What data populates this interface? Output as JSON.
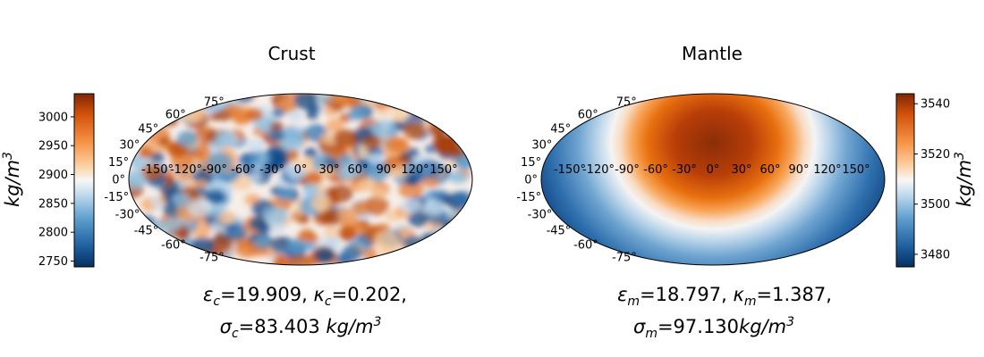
{
  "chart_data": [
    {
      "type": "heatmap",
      "projection": "mollweide",
      "title": "Crust",
      "colormap": "diverging orange-white-blue (high = orange)",
      "colorbar": {
        "label": "kg/m3",
        "label_display": "kg/m",
        "label_sup": "3",
        "ticks": [
          "3000",
          "2950",
          "2900",
          "2850",
          "2800",
          "2750"
        ],
        "tick_values": [
          3000,
          2950,
          2900,
          2850,
          2800,
          2750
        ],
        "range": [
          2740,
          3040
        ],
        "placement": "left"
      },
      "lon_tick_labels": [
        "-150°",
        "-120°",
        "-90°",
        "-60°",
        "-30°",
        "0°",
        "30°",
        "60°",
        "90°",
        "120°",
        "150°"
      ],
      "lon_tick_values": [
        -150,
        -120,
        -90,
        -60,
        -30,
        0,
        30,
        60,
        90,
        120,
        150
      ],
      "lat_tick_labels": [
        "75°",
        "60°",
        "45°",
        "30°",
        "15°",
        "0°",
        "-15°",
        "-30°",
        "-45°",
        "-60°",
        "-75°"
      ],
      "lat_tick_values": [
        75,
        60,
        45,
        30,
        15,
        0,
        -15,
        -30,
        -45,
        -60,
        -75
      ],
      "field": "small-scale random density variations around ~2900 kg/m3",
      "caption": {
        "eps_sym": "ε",
        "eps_sub": "c",
        "eps_val": "=19.909, ",
        "kap_sym": "κ",
        "kap_sub": "c",
        "kap_val": "=0.202,",
        "sig_sym": "σ",
        "sig_sub": "c",
        "sig_val": "=83.403 ",
        "unit": "kg/m",
        "unit_sup": "3"
      }
    },
    {
      "type": "heatmap",
      "projection": "mollweide",
      "title": "Mantle",
      "colormap": "diverging orange-white-blue (high = orange)",
      "colorbar": {
        "label": "kg/m3",
        "label_display": "kg/m",
        "label_sup": "3",
        "ticks": [
          "3540",
          "3520",
          "3500",
          "3480"
        ],
        "tick_values": [
          3540,
          3520,
          3500,
          3480
        ],
        "range": [
          3475,
          3544
        ],
        "placement": "right"
      },
      "lon_tick_labels": [
        "-150°",
        "-120°",
        "-90°",
        "-60°",
        "-30°",
        "0°",
        "30°",
        "60°",
        "90°",
        "120°",
        "150°"
      ],
      "lon_tick_values": [
        -150,
        -120,
        -90,
        -60,
        -30,
        0,
        30,
        60,
        90,
        120,
        150
      ],
      "lat_tick_labels": [
        "75°",
        "60°",
        "45°",
        "30°",
        "15°",
        "0°",
        "-15°",
        "-30°",
        "-45°",
        "-60°",
        "-75°"
      ],
      "lat_tick_values": [
        75,
        60,
        45,
        30,
        15,
        0,
        -15,
        -30,
        -45,
        -60,
        -75
      ],
      "field": "large-scale: dense (~3540) centered at lon 0, lat ~15; light (~3477) toward lon ±180",
      "caption": {
        "eps_sym": "ε",
        "eps_sub": "m",
        "eps_val": "=18.797, ",
        "kap_sym": "κ",
        "kap_sub": "m",
        "kap_val": "=1.387,",
        "sig_sym": "σ",
        "sig_sub": "m",
        "sig_val": "=97.130",
        "unit": "kg/m",
        "unit_sup": "3"
      }
    }
  ]
}
